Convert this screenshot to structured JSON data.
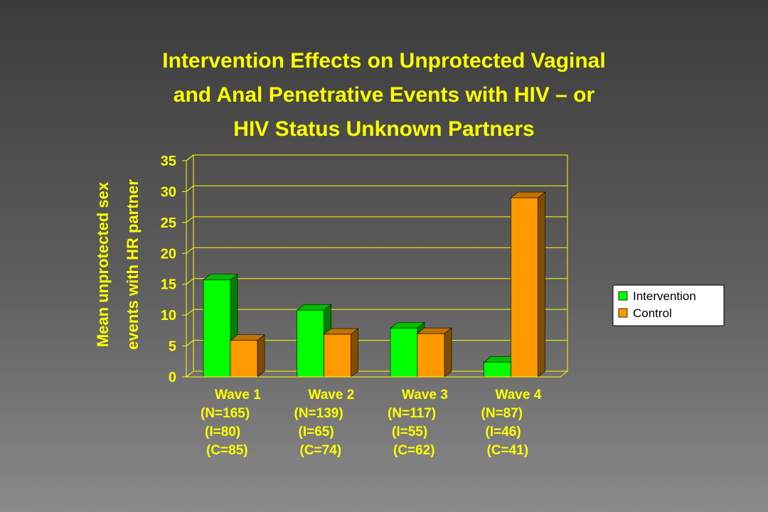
{
  "colors": {
    "text": "#ffff00",
    "intervention": "#00ff00",
    "control": "#ff9900",
    "legend_text": "#000000",
    "plot_border": "#ffff00"
  },
  "chart_data": {
    "type": "bar",
    "title_lines": [
      "Intervention Effects on Unprotected Vaginal",
      "and Anal Penetrative Events with HIV – or",
      "HIV Status Unknown Partners"
    ],
    "ylabel_lines": [
      "Mean unprotected sex",
      "events with HR partner"
    ],
    "ylim": [
      0,
      35
    ],
    "yticks": [
      0,
      5,
      10,
      15,
      20,
      25,
      30,
      35
    ],
    "grid": true,
    "legend_position": "right",
    "categories": [
      [
        "Wave 1",
        "(N=165)",
        "(I=80)",
        "(C=85)"
      ],
      [
        "Wave 2",
        "(N=139)",
        "(I=65)",
        "(C=74)"
      ],
      [
        "Wave 3",
        "(N=117)",
        "(I=55)",
        "(C=62)"
      ],
      [
        "Wave 4",
        "(N=87)",
        "(I=46)",
        "(C=41)"
      ]
    ],
    "series": [
      {
        "name": "Intervention",
        "values": [
          15.7,
          10.8,
          7.9,
          2.4
        ]
      },
      {
        "name": "Control",
        "values": [
          5.9,
          6.9,
          7.0,
          29.0
        ]
      }
    ]
  }
}
